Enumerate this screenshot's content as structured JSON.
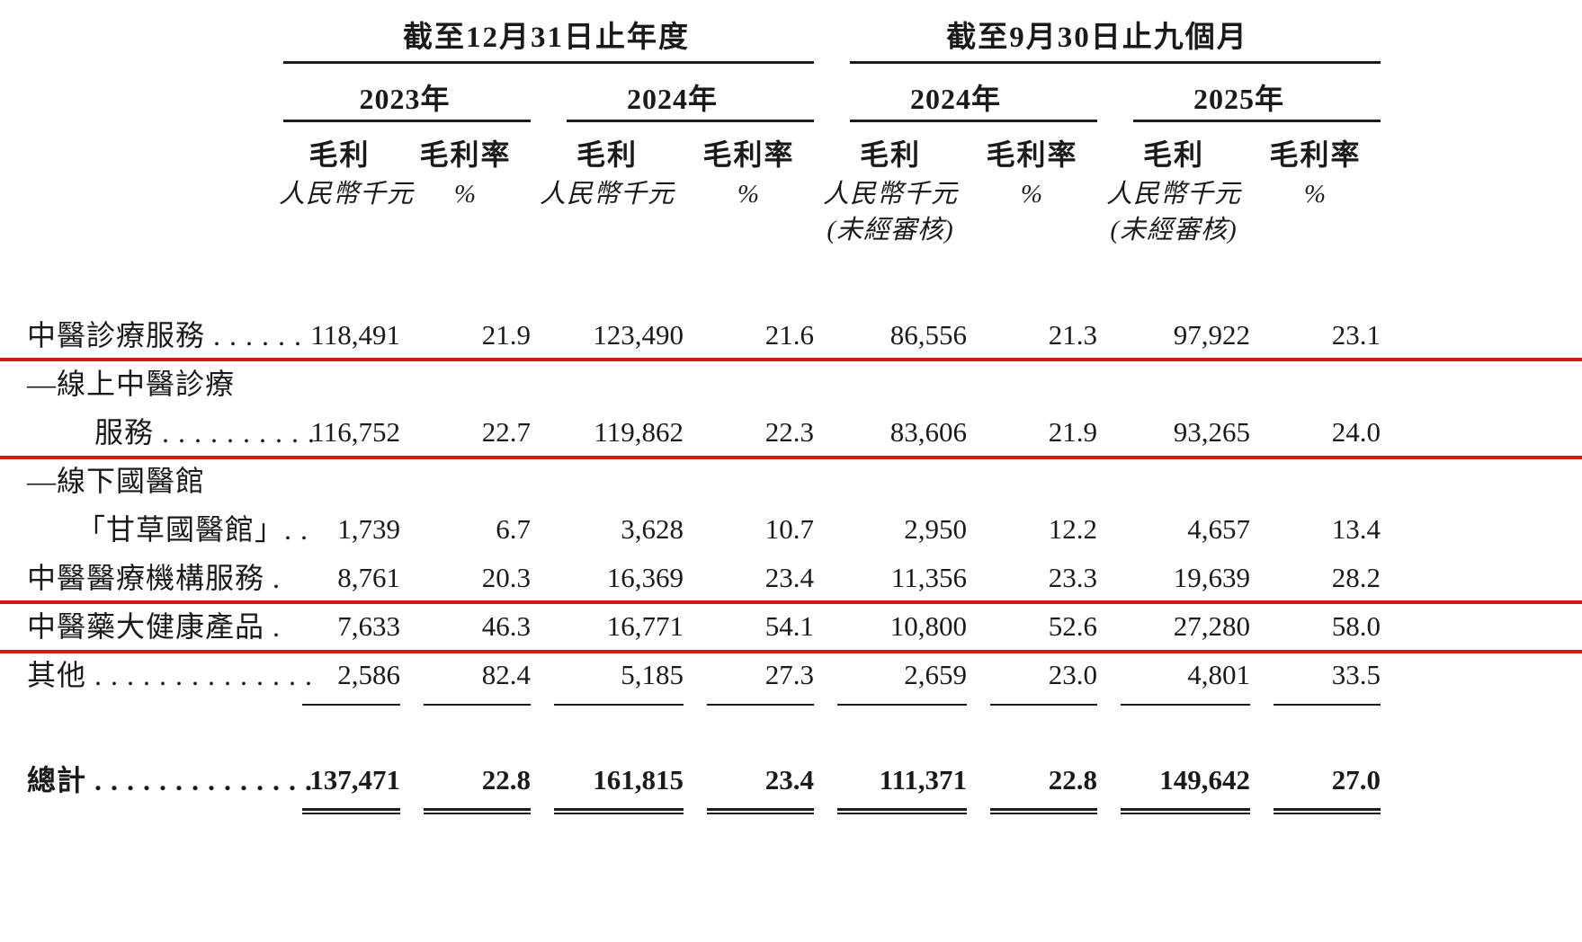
{
  "page": {
    "background": "#ffffff",
    "accent_red": "#cb1c18"
  },
  "table": {
    "period_groups": [
      {
        "title": "截至12月31日止年度",
        "years": [
          "2023年",
          "2024年"
        ]
      },
      {
        "title": "截至9月30日止九個月",
        "years": [
          "2024年",
          "2025年"
        ]
      }
    ],
    "col_headers": {
      "gross_profit": "毛利",
      "gross_margin": "毛利率",
      "rmb_unit": "人民幣千元",
      "pct_unit": "%",
      "unaudited": "(未經審核)"
    },
    "rows": [
      {
        "label": "中醫診療服務 . . . . . .",
        "values": [
          "118,491",
          "21.9",
          "123,490",
          "21.6",
          "86,556",
          "21.3",
          "97,922",
          "23.1"
        ]
      },
      {
        "label": "—線上中醫診療",
        "label2": "服務 . . . . . . . . . .",
        "values": [
          "116,752",
          "22.7",
          "119,862",
          "22.3",
          "83,606",
          "21.9",
          "93,265",
          "24.0"
        ],
        "highlighted": true
      },
      {
        "label": "—線下國醫館",
        "label2": "「甘草國醫館」. .",
        "values": [
          "1,739",
          "6.7",
          "3,628",
          "10.7",
          "2,950",
          "12.2",
          "4,657",
          "13.4"
        ]
      },
      {
        "label": "中醫醫療機構服務 .",
        "values": [
          "8,761",
          "20.3",
          "16,369",
          "23.4",
          "11,356",
          "23.3",
          "19,639",
          "28.2"
        ]
      },
      {
        "label": "中醫藥大健康產品 .",
        "values": [
          "7,633",
          "46.3",
          "16,771",
          "54.1",
          "10,800",
          "52.6",
          "27,280",
          "58.0"
        ],
        "highlighted": true
      },
      {
        "label": "其他 . . . . . . . . . . . . . .",
        "values": [
          "2,586",
          "82.4",
          "5,185",
          "27.3",
          "2,659",
          "23.0",
          "4,801",
          "33.5"
        ]
      }
    ],
    "total": {
      "label": "總計 . . . . . . . . . . . . . .",
      "values": [
        "137,471",
        "22.8",
        "161,815",
        "23.4",
        "111,371",
        "22.8",
        "149,642",
        "27.0"
      ]
    }
  }
}
